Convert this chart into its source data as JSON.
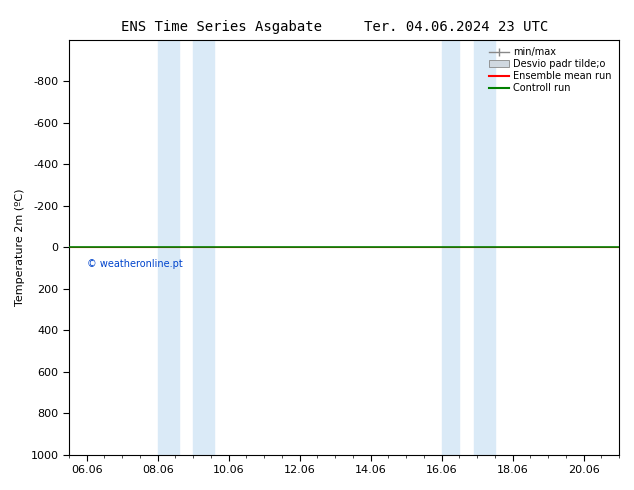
{
  "title_left": "ENS Time Series Asgabate",
  "title_right": "Ter. 04.06.2024 23 UTC",
  "ylabel": "Temperature 2m (ºC)",
  "ylim": [
    -1000,
    1000
  ],
  "yticks": [
    -800,
    -600,
    -400,
    -200,
    0,
    200,
    400,
    600,
    800,
    1000
  ],
  "xtick_labels": [
    "06.06",
    "08.06",
    "10.06",
    "12.06",
    "14.06",
    "16.06",
    "18.06",
    "20.06"
  ],
  "xtick_positions": [
    0,
    2,
    4,
    6,
    8,
    10,
    12,
    14
  ],
  "xlim": [
    -0.5,
    15.0
  ],
  "shaded_regions": [
    {
      "xstart": 2.0,
      "xend": 2.6
    },
    {
      "xstart": 3.0,
      "xend": 3.6
    },
    {
      "xstart": 10.0,
      "xend": 10.5
    },
    {
      "xstart": 10.9,
      "xend": 11.5
    }
  ],
  "shade_color": "#daeaf7",
  "control_run_y": 0,
  "ensemble_mean_y": 0,
  "control_run_color": "#008000",
  "ensemble_mean_color": "#ff0000",
  "minmax_color": "#888888",
  "watermark_text": "© weatheronline.pt",
  "watermark_color": "#0044cc",
  "legend_entries": [
    "min/max",
    "Desvio padr tilde;o",
    "Ensemble mean run",
    "Controll run"
  ],
  "background_color": "#ffffff",
  "title_fontsize": 10,
  "axis_fontsize": 8,
  "tick_fontsize": 8,
  "legend_fontsize": 7
}
